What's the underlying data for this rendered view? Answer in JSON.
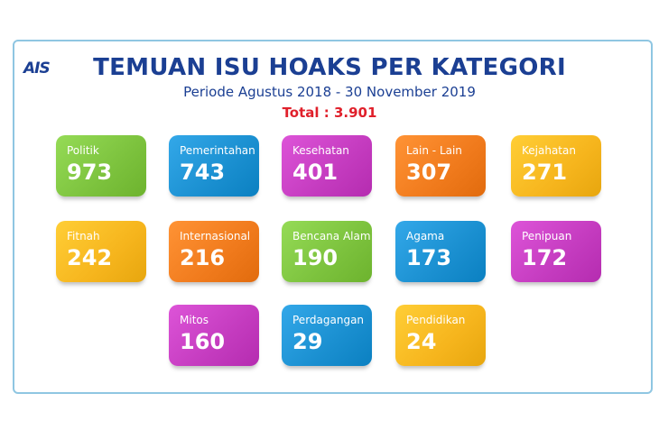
{
  "logo": "AIS",
  "chart_data": {
    "type": "table",
    "title": "TEMUAN ISU HOAKS PER KATEGORI",
    "subtitle": "Periode Agustus 2018 - 30 November 2019",
    "total_label": "Total : 3.901",
    "categories": [
      "Politik",
      "Pemerintahan",
      "Kesehatan",
      "Lain - Lain",
      "Kejahatan",
      "Fitnah",
      "Internasional",
      "Bencana Alam",
      "Agama",
      "Penipuan",
      "Mitos",
      "Perdagangan",
      "Pendidikan"
    ],
    "values": [
      973,
      743,
      401,
      307,
      271,
      242,
      216,
      190,
      173,
      172,
      160,
      29,
      24
    ],
    "colors": [
      "#7cc23d",
      "#1a8fd0",
      "#c43bbf",
      "#f07a1c",
      "#f6b51d",
      "#f6b51d",
      "#f07a1c",
      "#7cc23d",
      "#1a8fd0",
      "#c43bbf",
      "#c43bbf",
      "#1a8fd0",
      "#f6b51d"
    ]
  }
}
